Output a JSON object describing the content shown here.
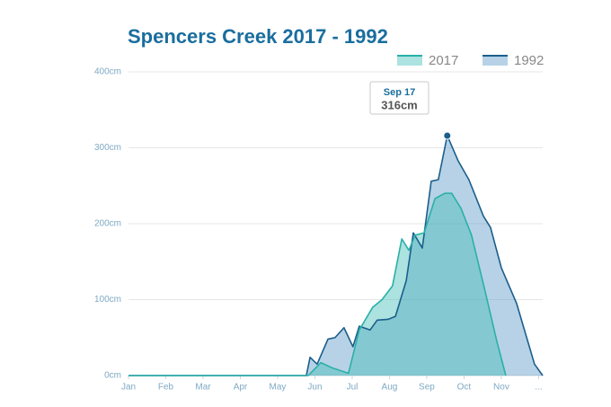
{
  "chart_data": {
    "type": "area",
    "title": "Spencers Creek 2017 - 1992",
    "xlim": [
      0,
      11.11
    ],
    "xticks": [
      {
        "value": 0,
        "label": "Jan"
      },
      {
        "value": 1,
        "label": "Feb"
      },
      {
        "value": 2,
        "label": "Mar"
      },
      {
        "value": 3,
        "label": "Apr"
      },
      {
        "value": 4,
        "label": "May"
      },
      {
        "value": 5,
        "label": "Jun"
      },
      {
        "value": 6,
        "label": "Jul"
      },
      {
        "value": 7,
        "label": "Aug"
      },
      {
        "value": 8,
        "label": "Sep"
      },
      {
        "value": 9,
        "label": "Oct"
      },
      {
        "value": 10,
        "label": "Nov"
      },
      {
        "value": 11,
        "label": "..."
      }
    ],
    "ylim": [
      0,
      400
    ],
    "yticks": [
      {
        "value": 0,
        "label": "0cm"
      },
      {
        "value": 100,
        "label": "100cm"
      },
      {
        "value": 200,
        "label": "200cm"
      },
      {
        "value": 300,
        "label": "300cm"
      },
      {
        "value": 400,
        "label": "400cm"
      }
    ],
    "grid": true,
    "legend": "top-right",
    "series": [
      {
        "name": "1992",
        "color": "#1b5e8c",
        "fill": "rgba(96,156,200,0.45)",
        "x": [
          0,
          4.77,
          4.87,
          5.06,
          5.35,
          5.54,
          5.78,
          6.02,
          6.19,
          6.48,
          6.67,
          6.96,
          7.16,
          7.45,
          7.64,
          7.88,
          8.12,
          8.31,
          8.55,
          8.84,
          9.13,
          9.52,
          9.71,
          10.0,
          10.41,
          10.89,
          11.11
        ],
        "values": [
          0,
          0,
          24,
          15,
          48,
          50,
          63,
          38,
          65,
          60,
          73,
          74,
          78,
          125,
          188,
          168,
          256,
          258,
          316,
          283,
          258,
          210,
          195,
          142,
          95,
          15,
          0
        ]
      },
      {
        "name": "2017",
        "color": "#2ab0a8",
        "fill": "rgba(72,190,184,0.45)",
        "x": [
          0,
          4.82,
          5.16,
          5.47,
          5.9,
          6.19,
          6.55,
          6.8,
          7.08,
          7.33,
          7.52,
          7.69,
          7.93,
          8.22,
          8.48,
          8.67,
          8.92,
          9.2,
          9.57,
          9.88,
          10.12
        ],
        "values": [
          0,
          0,
          17,
          10,
          3,
          60,
          90,
          100,
          118,
          180,
          165,
          185,
          188,
          233,
          240,
          240,
          220,
          185,
          110,
          45,
          0
        ]
      }
    ],
    "tooltip": {
      "series": 0,
      "index": 18,
      "date": "Sep 17",
      "label": "316cm"
    }
  }
}
